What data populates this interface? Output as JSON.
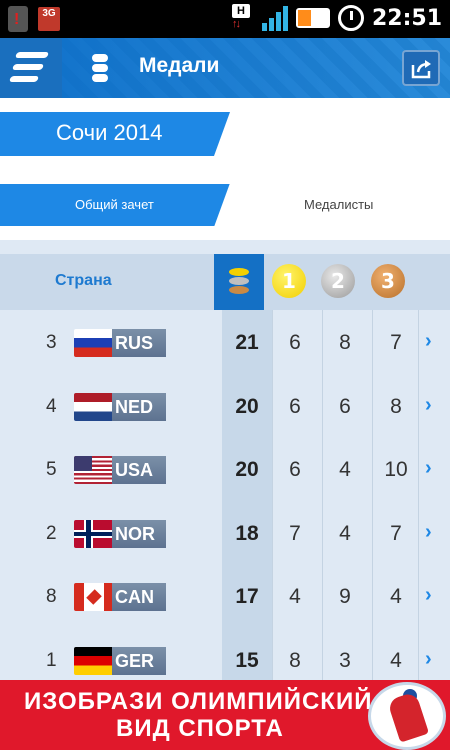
{
  "status_bar": {
    "time": "22:51",
    "network_badge": "3G",
    "data_badge": "H",
    "battery_level": 0.45
  },
  "header": {
    "title": "Медали",
    "icons": [
      "menu-icon",
      "medal-stack-icon",
      "share-icon"
    ]
  },
  "event": {
    "title": "Сочи 2014"
  },
  "tabs": [
    {
      "label": "Общий зачет",
      "active": true
    },
    {
      "label": "Медалисты",
      "active": false
    }
  ],
  "table": {
    "country_header": "Страна",
    "medal_headers": [
      "1",
      "2",
      "3"
    ],
    "rows": [
      {
        "rank": "3",
        "code": "RUS",
        "total": "21",
        "gold": "6",
        "silver": "8",
        "bronze": "7"
      },
      {
        "rank": "4",
        "code": "NED",
        "total": "20",
        "gold": "6",
        "silver": "6",
        "bronze": "8"
      },
      {
        "rank": "5",
        "code": "USA",
        "total": "20",
        "gold": "6",
        "silver": "4",
        "bronze": "10"
      },
      {
        "rank": "2",
        "code": "NOR",
        "total": "18",
        "gold": "7",
        "silver": "4",
        "bronze": "7"
      },
      {
        "rank": "8",
        "code": "CAN",
        "total": "17",
        "gold": "4",
        "silver": "9",
        "bronze": "4"
      },
      {
        "rank": "1",
        "code": "GER",
        "total": "15",
        "gold": "8",
        "silver": "3",
        "bronze": "4"
      }
    ]
  },
  "ad": {
    "line1": "ИЗОБРАЗИ ОЛИМПИЙСКИЙ",
    "line2": "ВИД СПОРТА"
  },
  "colors": {
    "accent": "#1e88e5",
    "ad_red": "#e0182b",
    "gold": "#f2cf00",
    "silver": "#9a9a9a",
    "bronze": "#b8702a"
  }
}
